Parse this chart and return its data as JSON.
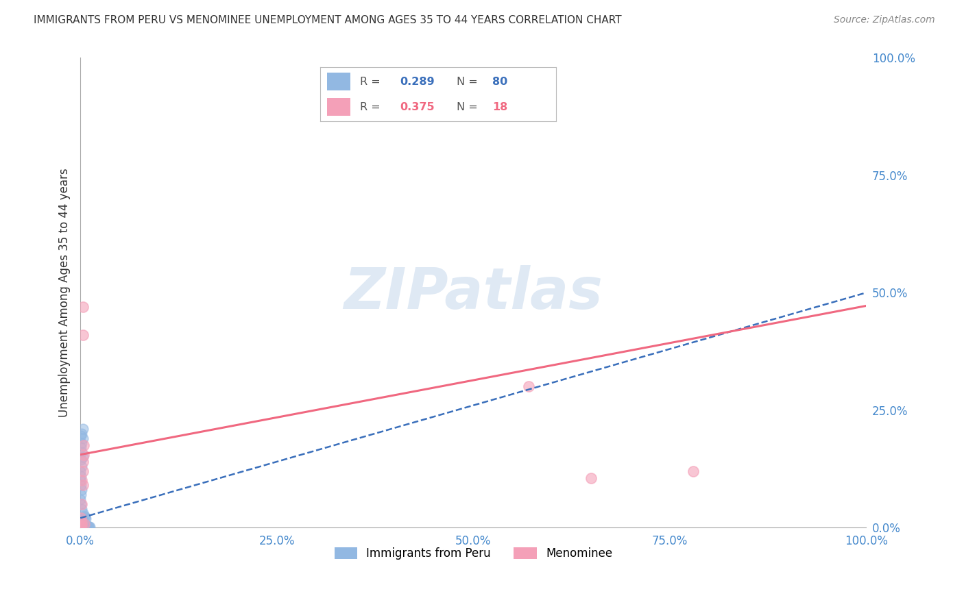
{
  "title": "IMMIGRANTS FROM PERU VS MENOMINEE UNEMPLOYMENT AMONG AGES 35 TO 44 YEARS CORRELATION CHART",
  "source": "Source: ZipAtlas.com",
  "ylabel": "Unemployment Among Ages 35 to 44 years",
  "blue_label": "Immigrants from Peru",
  "pink_label": "Menominee",
  "blue_R": 0.289,
  "blue_N": 80,
  "pink_R": 0.375,
  "pink_N": 18,
  "blue_color": "#92b8e2",
  "pink_color": "#f4a0b8",
  "blue_line_color": "#3a6fbb",
  "pink_line_color": "#f06880",
  "xlim": [
    0,
    1.0
  ],
  "ylim": [
    0,
    1.0
  ],
  "watermark_text": "ZIPatlas",
  "background_color": "#ffffff",
  "blue_x": [
    0.001,
    0.002,
    0.003,
    0.001,
    0.002,
    0.003,
    0.004,
    0.001,
    0.002,
    0.001,
    0.003,
    0.002,
    0.001,
    0.004,
    0.002,
    0.003,
    0.001,
    0.002,
    0.003,
    0.001,
    0.002,
    0.003,
    0.004,
    0.002,
    0.003,
    0.001,
    0.002,
    0.001,
    0.003,
    0.002,
    0.001,
    0.003,
    0.002,
    0.004,
    0.001,
    0.002,
    0.003,
    0.001,
    0.002,
    0.001,
    0.003,
    0.002,
    0.001,
    0.003,
    0.002,
    0.001,
    0.002,
    0.003,
    0.001,
    0.002,
    0.0,
    0.001,
    0.0,
    0.001,
    0.002,
    0.001,
    0.0,
    0.001,
    0.002,
    0.003,
    0.001,
    0.002,
    0.003,
    0.001,
    0.002,
    0.001,
    0.003,
    0.002,
    0.001,
    0.004,
    0.005,
    0.006,
    0.007,
    0.008,
    0.009,
    0.01,
    0.011,
    0.012,
    0.004,
    0.005
  ],
  "blue_y": [
    0.001,
    0.002,
    0.001,
    0.003,
    0.001,
    0.002,
    0.001,
    0.002,
    0.001,
    0.003,
    0.001,
    0.002,
    0.001,
    0.003,
    0.002,
    0.001,
    0.004,
    0.002,
    0.003,
    0.001,
    0.005,
    0.004,
    0.003,
    0.002,
    0.001,
    0.003,
    0.002,
    0.001,
    0.004,
    0.003,
    0.001,
    0.002,
    0.003,
    0.001,
    0.002,
    0.001,
    0.003,
    0.002,
    0.001,
    0.004,
    0.21,
    0.2,
    0.195,
    0.19,
    0.18,
    0.17,
    0.16,
    0.15,
    0.145,
    0.13,
    0.12,
    0.11,
    0.1,
    0.09,
    0.08,
    0.07,
    0.06,
    0.05,
    0.04,
    0.03,
    0.02,
    0.018,
    0.015,
    0.012,
    0.01,
    0.008,
    0.006,
    0.004,
    0.002,
    0.001,
    0.025,
    0.022,
    0.019,
    0.002,
    0.003,
    0.001,
    0.002,
    0.001,
    0.003,
    0.002
  ],
  "pink_x": [
    0.003,
    0.003,
    0.004,
    0.004,
    0.003,
    0.003,
    0.002,
    0.003,
    0.002,
    0.001,
    0.002,
    0.002,
    0.001,
    0.0,
    0.57,
    0.65,
    0.78,
    0.005
  ],
  "pink_y": [
    0.47,
    0.41,
    0.175,
    0.155,
    0.14,
    0.12,
    0.1,
    0.09,
    0.05,
    0.02,
    0.01,
    0.005,
    0.003,
    0.0,
    0.3,
    0.105,
    0.12,
    0.008
  ],
  "blue_trend": [
    0.0,
    0.5
  ],
  "blue_trend_y": [
    0.023,
    0.5
  ],
  "pink_trend": [
    0.0,
    1.0
  ],
  "pink_trend_y": [
    0.155,
    0.475
  ]
}
